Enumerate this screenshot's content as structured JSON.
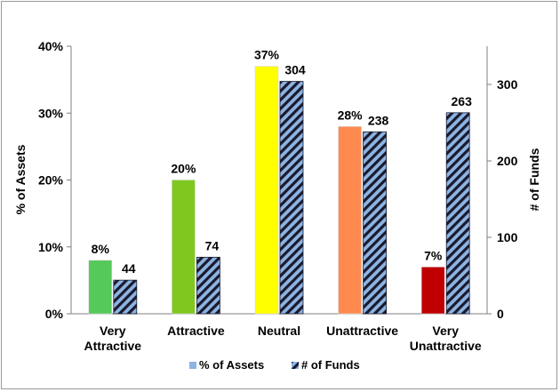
{
  "chart_data": {
    "type": "bar",
    "categories": [
      "Very Attractive",
      "Attractive",
      "Neutral",
      "Unattractive",
      "Very Unattractive"
    ],
    "category_lines": [
      [
        "Very",
        "Attractive"
      ],
      [
        "Attractive"
      ],
      [
        "Neutral"
      ],
      [
        "Unattractive"
      ],
      [
        "Very",
        "Unattractive"
      ]
    ],
    "series": [
      {
        "name": "% of Assets",
        "axis": "left",
        "values": [
          8,
          20,
          37,
          28,
          7
        ],
        "value_labels": [
          "8%",
          "20%",
          "37%",
          "28%",
          "7%"
        ],
        "colors": [
          "#55c95a",
          "#7ec820",
          "#ffff00",
          "#ff8a4f",
          "#c00000"
        ],
        "legend_color": "#8db4e2"
      },
      {
        "name": "# of Funds",
        "axis": "right",
        "values": [
          44,
          74,
          304,
          238,
          263
        ],
        "value_labels": [
          "44",
          "74",
          "304",
          "238",
          "263"
        ],
        "pattern_colors": [
          "#8db4e2",
          "#1a1a2e"
        ]
      }
    ],
    "ylabel": "% of Assets",
    "ylabel_right": "# of Funds",
    "ylim": [
      0,
      40
    ],
    "ylim_right": [
      0,
      350
    ],
    "yticks": [
      "0%",
      "10%",
      "20%",
      "30%",
      "40%"
    ],
    "yticks_right": [
      "0",
      "100",
      "200",
      "300"
    ],
    "grid": false,
    "legend": "bottom"
  }
}
